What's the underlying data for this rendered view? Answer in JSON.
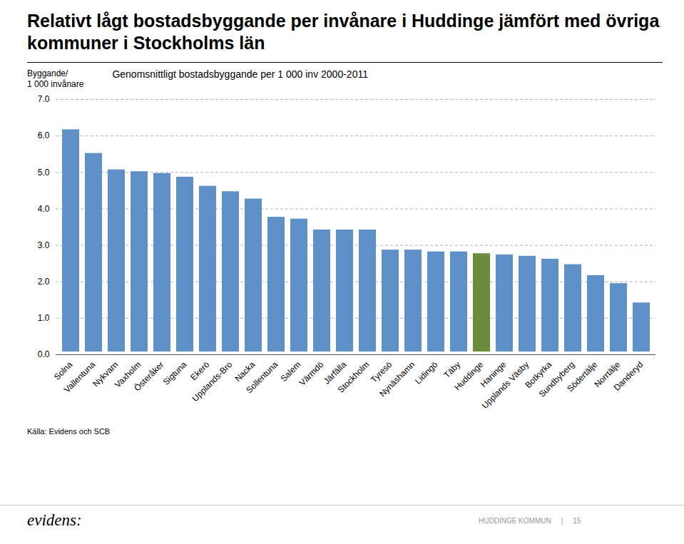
{
  "chart_data": {
    "type": "bar",
    "title": "Relativt lågt bostadsbyggande per invånare i Huddinge jämfört med övriga kommuner i Stockholms län",
    "subtitle": "Genomsnittligt bostadsbyggande per 1 000 inv 2000-2011",
    "ylabel": "Byggande/\n1 000 invånare",
    "annotations": [
      "Källa: Evidens och SCB",
      "evidens:",
      "HUDDINGE KOMMUN",
      "|",
      "15"
    ],
    "categories": [
      "Solna",
      "Vallentuna",
      "Nykvarn",
      "Vaxholm",
      "Österåker",
      "Sigtuna",
      "Ekerö",
      "Upplands-Bro",
      "Nacka",
      "Sollentuna",
      "Salem",
      "Värmdö",
      "Järfälla",
      "Stockholm",
      "Tyresö",
      "Nynäshamn",
      "Lidingö",
      "Täby",
      "Huddinge",
      "Haninge",
      "Upplands Väsby",
      "Botkyrka",
      "Sundbyberg",
      "Södertälje",
      "Norrtälje",
      "Danderyd"
    ],
    "values": [
      6.25,
      5.6,
      5.15,
      5.1,
      5.05,
      4.95,
      4.7,
      4.55,
      4.35,
      3.85,
      3.8,
      3.5,
      3.5,
      3.5,
      2.95,
      2.95,
      2.9,
      2.9,
      2.85,
      2.82,
      2.78,
      2.7,
      2.55,
      2.25,
      2.03,
      1.5
    ],
    "colors": [
      "#6090c8",
      "#6090c8",
      "#6090c8",
      "#6090c8",
      "#6090c8",
      "#6090c8",
      "#6090c8",
      "#6090c8",
      "#6090c8",
      "#6090c8",
      "#6090c8",
      "#6090c8",
      "#6090c8",
      "#6090c8",
      "#6090c8",
      "#6090c8",
      "#6090c8",
      "#6090c8",
      "#6b8c3a",
      "#6090c8",
      "#6090c8",
      "#6090c8",
      "#6090c8",
      "#6090c8",
      "#6090c8",
      "#6090c8"
    ],
    "ylim": [
      0,
      7
    ],
    "yticks": [
      0,
      1,
      2,
      3,
      4,
      5,
      6,
      7
    ],
    "grid": true
  }
}
